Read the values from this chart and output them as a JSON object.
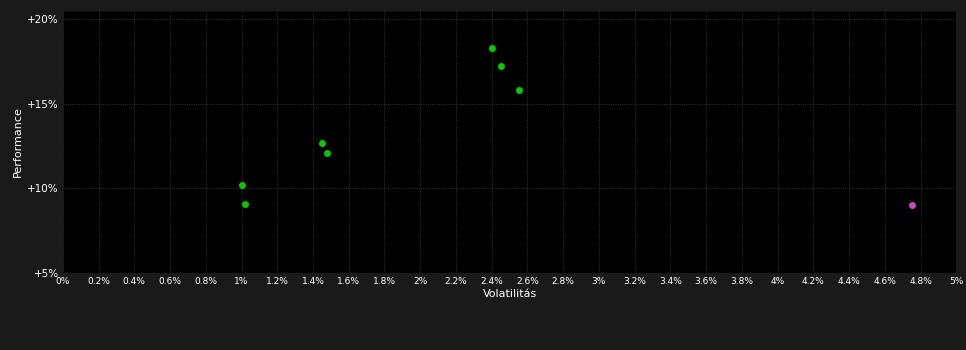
{
  "background_color": "#1a1a1a",
  "plot_bg_color": "#000000",
  "grid_color": "#444444",
  "grid_linestyle": ":",
  "xlabel": "Volatilitás",
  "ylabel": "Performance",
  "xlim": [
    0,
    0.05
  ],
  "ylim": [
    0.05,
    0.205
  ],
  "xtick_labels": [
    "0%",
    "0.2%",
    "0.4%",
    "0.6%",
    "0.8%",
    "1%",
    "1.2%",
    "1.4%",
    "1.6%",
    "1.8%",
    "2%",
    "2.2%",
    "2.4%",
    "2.6%",
    "2.8%",
    "3%",
    "3.2%",
    "3.4%",
    "3.6%",
    "3.8%",
    "4%",
    "4.2%",
    "4.4%",
    "4.6%",
    "4.8%",
    "5%"
  ],
  "xtick_values": [
    0,
    0.002,
    0.004,
    0.006,
    0.008,
    0.01,
    0.012,
    0.014,
    0.016,
    0.018,
    0.02,
    0.022,
    0.024,
    0.026,
    0.028,
    0.03,
    0.032,
    0.034,
    0.036,
    0.038,
    0.04,
    0.042,
    0.044,
    0.046,
    0.048,
    0.05
  ],
  "ytick_labels": [
    "+5%",
    "+10%",
    "+15%",
    "+20%"
  ],
  "ytick_values": [
    0.05,
    0.1,
    0.15,
    0.2
  ],
  "green_points": [
    [
      0.024,
      0.183
    ],
    [
      0.0245,
      0.172
    ],
    [
      0.0255,
      0.158
    ],
    [
      0.0145,
      0.127
    ],
    [
      0.0148,
      0.121
    ],
    [
      0.01,
      0.102
    ],
    [
      0.0102,
      0.091
    ]
  ],
  "magenta_points": [
    [
      0.0475,
      0.09
    ]
  ],
  "green_color": "#00cc00",
  "magenta_color": "#cc44cc",
  "marker_size": 25,
  "tick_color": "#ffffff",
  "label_color": "#ffffff",
  "figsize": [
    9.66,
    3.5
  ],
  "dpi": 100
}
